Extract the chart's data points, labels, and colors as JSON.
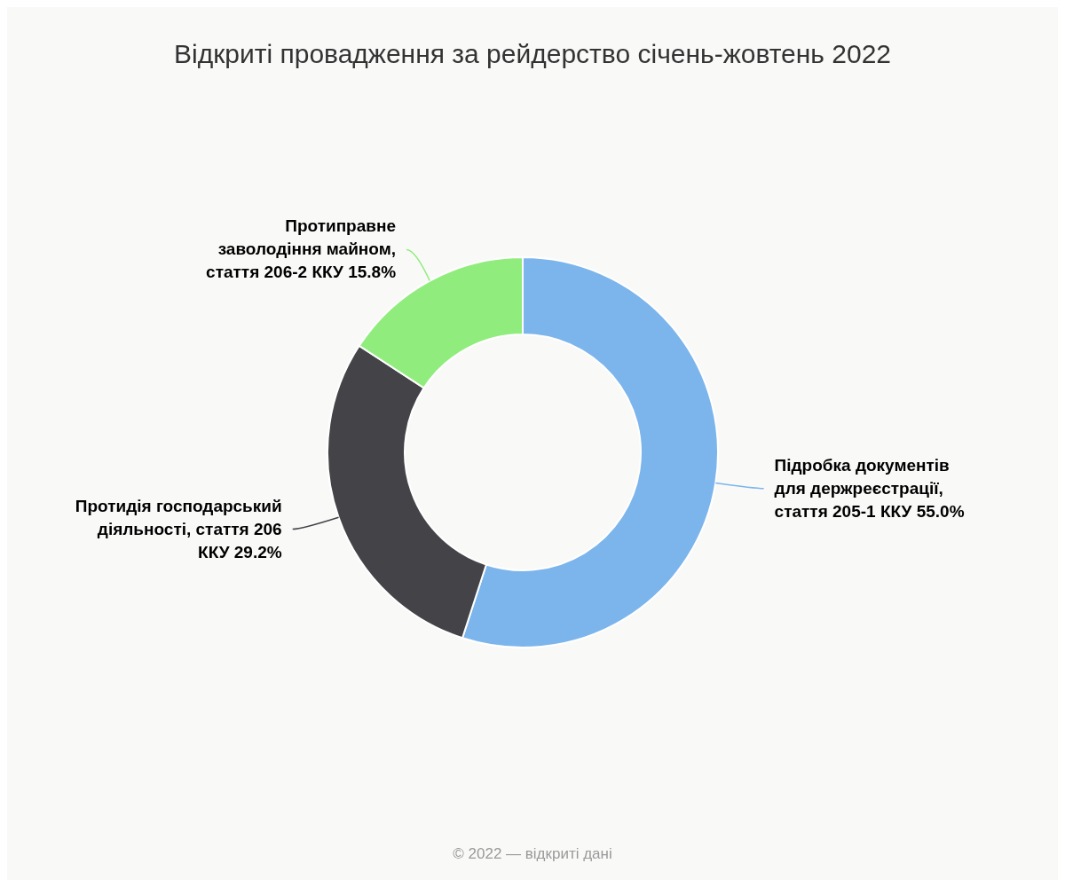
{
  "chart_data": {
    "type": "donut",
    "title": "Відкриті провадження за рейдерство січень-жовтень 2022",
    "categories": [
      "Підробка документів для держреєстрації, стаття 205-1 ККУ",
      "Протидія господарський діяльності, стаття 206 ККУ",
      "Протиправне заволодіння майном, стаття 206-2 ККУ"
    ],
    "values": [
      55.0,
      29.2,
      15.8
    ],
    "value_labels": [
      "55.0%",
      "29.2%",
      "15.8%"
    ],
    "colors": [
      "#7cb5ec",
      "#434348",
      "#90ed7d"
    ],
    "annotations": [
      "© 2022 — відкриті дані"
    ]
  }
}
